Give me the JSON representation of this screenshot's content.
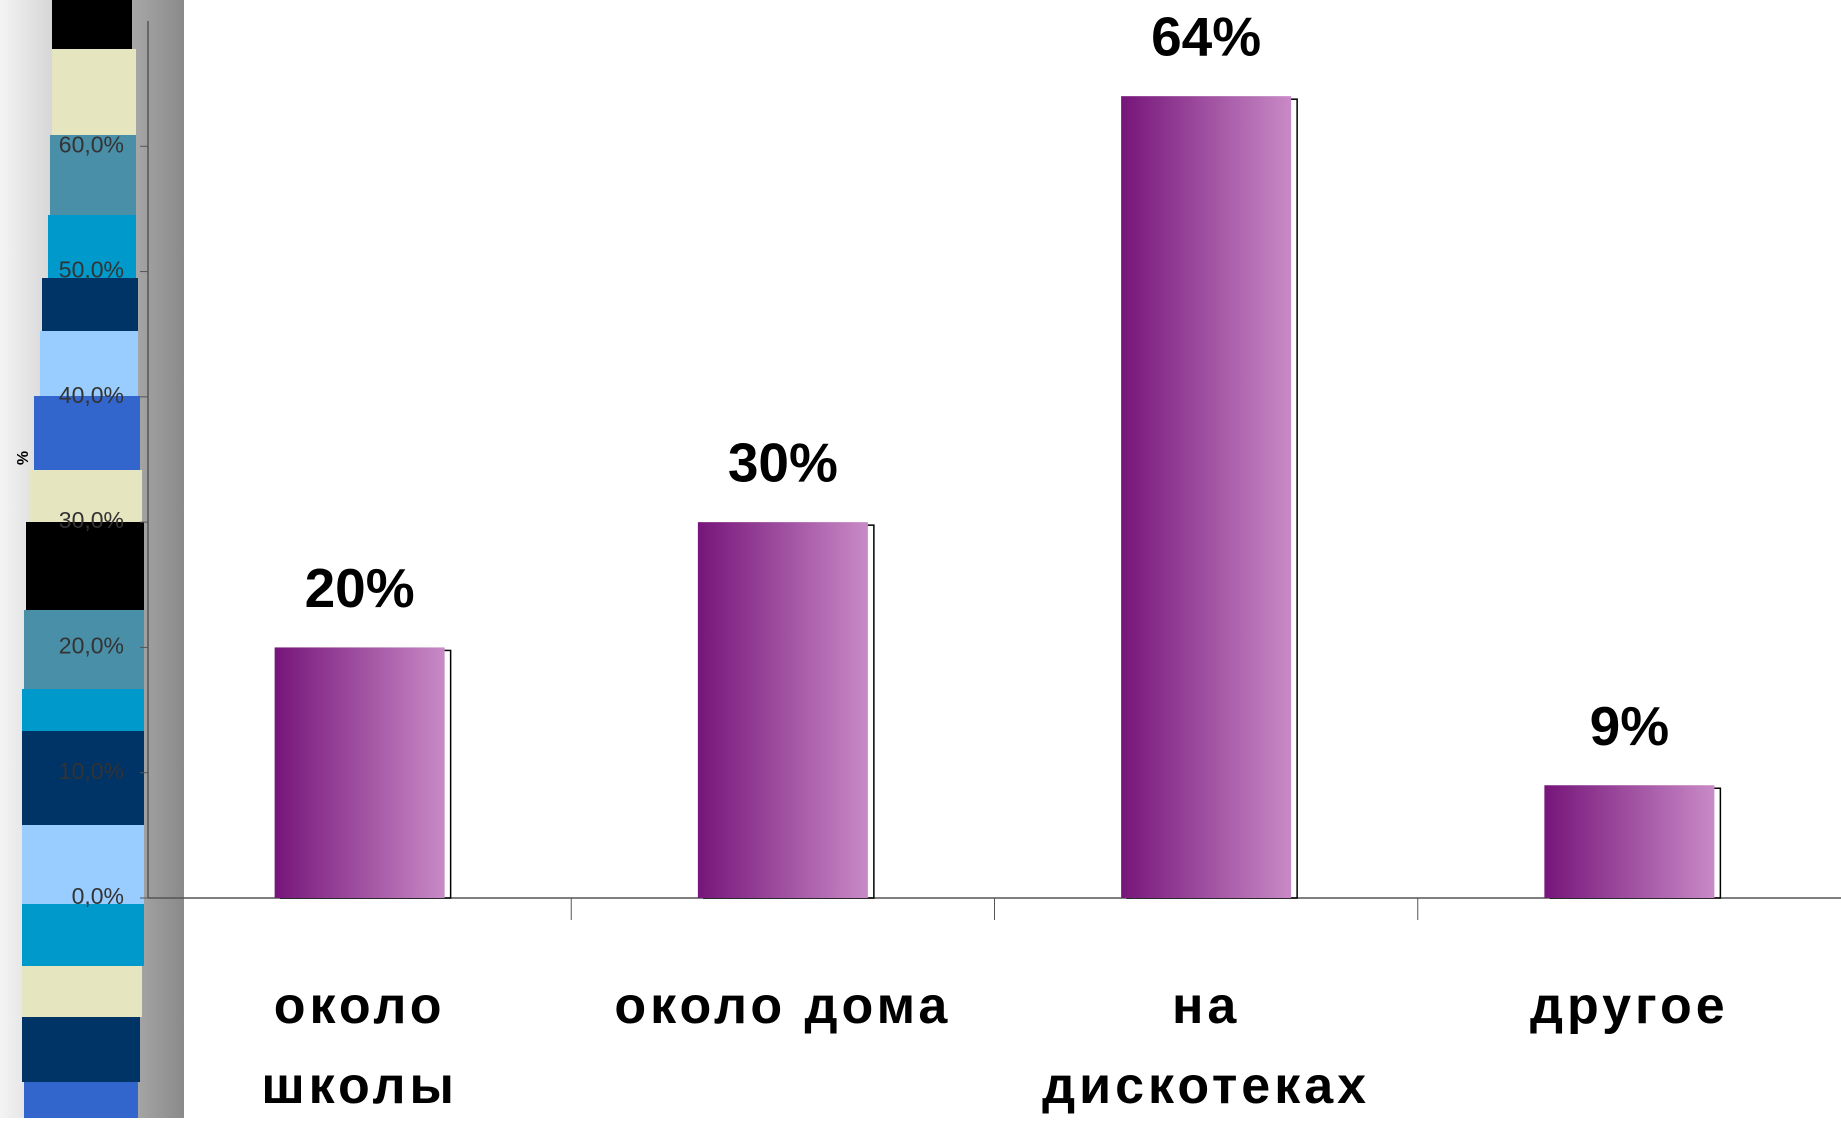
{
  "chart_data": {
    "type": "bar",
    "y_label": "%",
    "categories": [
      "около\nшколы",
      "около  дома",
      "на\nдискотеках",
      "другое"
    ],
    "values": [
      20,
      30,
      64,
      9
    ],
    "value_labels": [
      "20%",
      "30%",
      "64%",
      "9%"
    ],
    "color": "#76157a",
    "gradient_end": "#c88ac6",
    "ylim": [
      0,
      70
    ],
    "yticks": [
      {
        "value": 0,
        "label": "0,0%"
      },
      {
        "value": 10,
        "label": "10,0%"
      },
      {
        "value": 20,
        "label": "20,0%"
      },
      {
        "value": 30,
        "label": "30,0%"
      },
      {
        "value": 40,
        "label": "40,0%"
      },
      {
        "value": 50,
        "label": "50,0%"
      },
      {
        "value": 60,
        "label": "60,0%"
      }
    ],
    "grid": false
  }
}
